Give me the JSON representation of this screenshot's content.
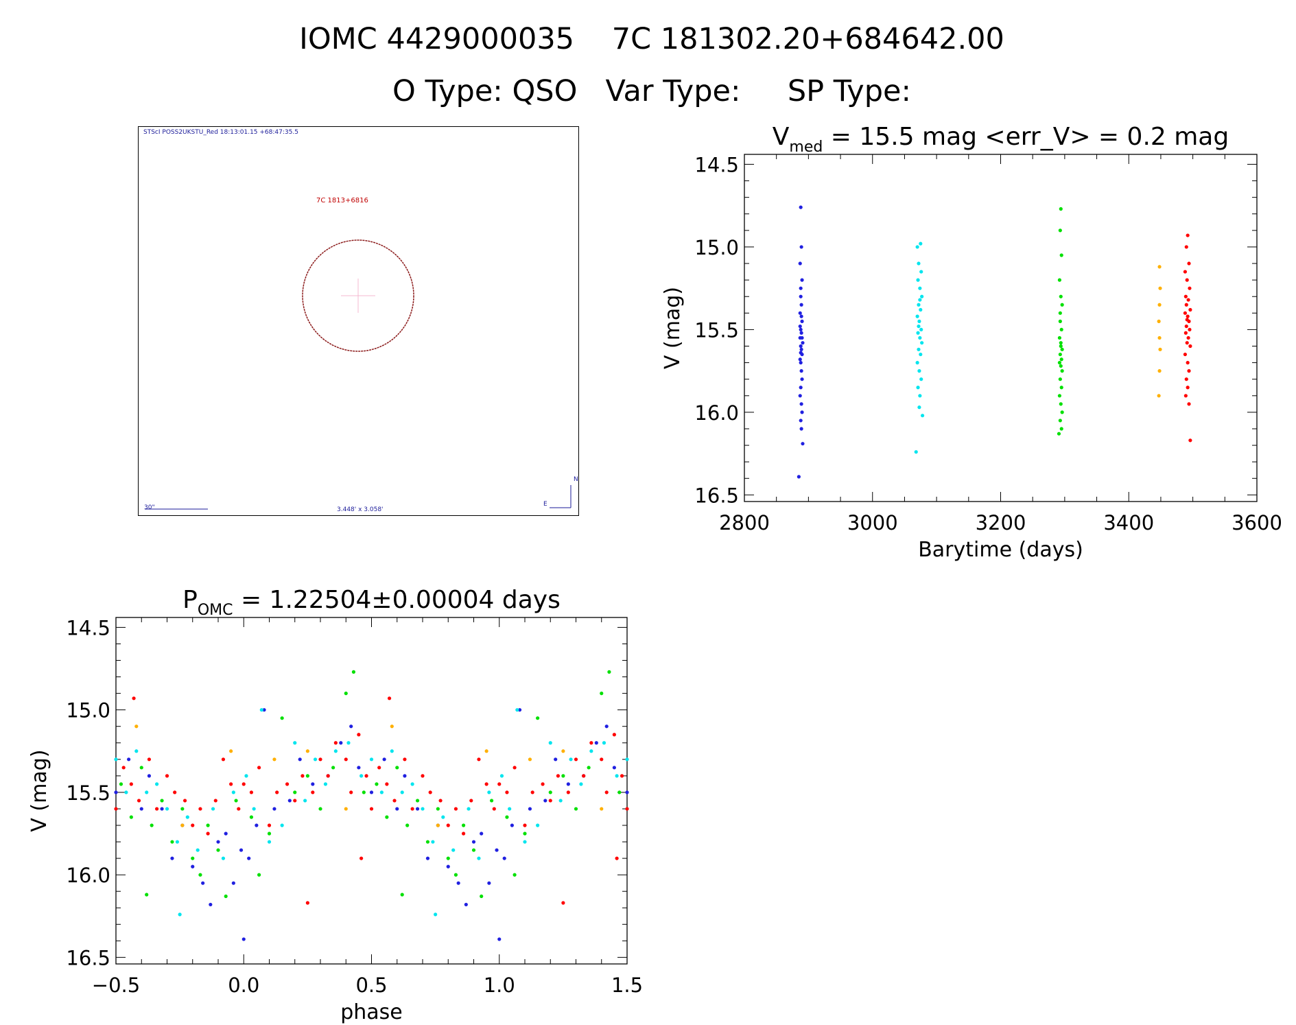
{
  "header": {
    "line1": "IOMC 4429000035    7C 181302.20+684642.00",
    "line2": "O Type: QSO   Var Type:     SP Type:"
  },
  "finder": {
    "survey_label": "STScI POSS2UKSTU_Red 18:13:01.15 +68:47:35.5",
    "object_label": "7C 1813+6816",
    "scale_label": "30\"",
    "field_size": "3.448' x 3.058'",
    "north": "N",
    "east": "E"
  },
  "chart_data": [
    {
      "type": "scatter",
      "title": "V_med = 15.5 mag <err_V> = 0.2 mag",
      "title_parts": {
        "v": "V",
        "sub": "med",
        "rest": " = 15.5 mag <err_V> = 0.2 mag"
      },
      "xlabel": "Barytime (days)",
      "ylabel": "V (mag)",
      "xlim": [
        2800,
        3600
      ],
      "ylim": [
        16.54,
        14.44
      ],
      "y_inverted": true,
      "xticks": [
        "2800",
        "3000",
        "3200",
        "3400",
        "3600"
      ],
      "yticks": [
        "14.5",
        "15.0",
        "15.5",
        "16.0",
        "16.5"
      ],
      "series": [
        {
          "color": "#2020e0",
          "points": [
            [
              2888,
              14.76
            ],
            [
              2889,
              15.0
            ],
            [
              2887,
              15.1
            ],
            [
              2890,
              15.2
            ],
            [
              2888,
              15.3
            ],
            [
              2889,
              15.35
            ],
            [
              2887,
              15.4
            ],
            [
              2890,
              15.45
            ],
            [
              2888,
              15.5
            ],
            [
              2889,
              15.52
            ],
            [
              2887,
              15.55
            ],
            [
              2891,
              15.58
            ],
            [
              2888,
              15.6
            ],
            [
              2889,
              15.62
            ],
            [
              2890,
              15.65
            ],
            [
              2887,
              15.68
            ],
            [
              2888,
              15.7
            ],
            [
              2889,
              15.75
            ],
            [
              2890,
              15.8
            ],
            [
              2888,
              15.85
            ],
            [
              2887,
              15.9
            ],
            [
              2889,
              15.95
            ],
            [
              2890,
              16.0
            ],
            [
              2888,
              16.05
            ],
            [
              2889,
              16.1
            ],
            [
              2891,
              16.19
            ],
            [
              2885,
              16.39
            ],
            [
              2888,
              15.25
            ],
            [
              2890,
              15.55
            ],
            [
              2887,
              15.48
            ],
            [
              2889,
              15.42
            ],
            [
              2888,
              15.64
            ]
          ]
        },
        {
          "color": "#00e5ee",
          "points": [
            [
              3075,
              14.98
            ],
            [
              3070,
              15.0
            ],
            [
              3072,
              15.1
            ],
            [
              3076,
              15.15
            ],
            [
              3071,
              15.2
            ],
            [
              3074,
              15.25
            ],
            [
              3077,
              15.3
            ],
            [
              3072,
              15.35
            ],
            [
              3075,
              15.38
            ],
            [
              3070,
              15.42
            ],
            [
              3073,
              15.45
            ],
            [
              3076,
              15.5
            ],
            [
              3071,
              15.52
            ],
            [
              3074,
              15.55
            ],
            [
              3077,
              15.58
            ],
            [
              3072,
              15.62
            ],
            [
              3075,
              15.65
            ],
            [
              3070,
              15.7
            ],
            [
              3073,
              15.75
            ],
            [
              3076,
              15.8
            ],
            [
              3071,
              15.85
            ],
            [
              3074,
              15.9
            ],
            [
              3073,
              15.97
            ],
            [
              3078,
              16.02
            ],
            [
              3068,
              16.24
            ],
            [
              3074,
              15.32
            ],
            [
              3072,
              15.48
            ]
          ]
        },
        {
          "color": "#00e000",
          "points": [
            [
              3294,
              14.77
            ],
            [
              3293,
              14.9
            ],
            [
              3295,
              15.05
            ],
            [
              3292,
              15.2
            ],
            [
              3294,
              15.3
            ],
            [
              3296,
              15.35
            ],
            [
              3293,
              15.45
            ],
            [
              3295,
              15.5
            ],
            [
              3292,
              15.55
            ],
            [
              3294,
              15.6
            ],
            [
              3296,
              15.62
            ],
            [
              3293,
              15.65
            ],
            [
              3295,
              15.68
            ],
            [
              3292,
              15.7
            ],
            [
              3294,
              15.72
            ],
            [
              3296,
              15.75
            ],
            [
              3293,
              15.8
            ],
            [
              3295,
              15.85
            ],
            [
              3292,
              15.9
            ],
            [
              3294,
              15.95
            ],
            [
              3296,
              16.0
            ],
            [
              3293,
              16.05
            ],
            [
              3291,
              16.13
            ],
            [
              3295,
              16.1
            ],
            [
              3294,
              15.58
            ],
            [
              3293,
              15.4
            ]
          ]
        },
        {
          "color": "#ffb000",
          "points": [
            [
              3448,
              15.12
            ],
            [
              3449,
              15.25
            ],
            [
              3448,
              15.35
            ],
            [
              3447,
              15.45
            ],
            [
              3448,
              15.55
            ],
            [
              3449,
              15.62
            ],
            [
              3448,
              15.75
            ],
            [
              3447,
              15.9
            ]
          ]
        },
        {
          "color": "#ff0000",
          "points": [
            [
              3492,
              14.93
            ],
            [
              3490,
              15.0
            ],
            [
              3494,
              15.1
            ],
            [
              3488,
              15.15
            ],
            [
              3491,
              15.2
            ],
            [
              3495,
              15.25
            ],
            [
              3489,
              15.3
            ],
            [
              3493,
              15.32
            ],
            [
              3490,
              15.35
            ],
            [
              3496,
              15.38
            ],
            [
              3488,
              15.4
            ],
            [
              3492,
              15.42
            ],
            [
              3494,
              15.45
            ],
            [
              3490,
              15.48
            ],
            [
              3495,
              15.5
            ],
            [
              3489,
              15.52
            ],
            [
              3493,
              15.55
            ],
            [
              3491,
              15.58
            ],
            [
              3496,
              15.6
            ],
            [
              3488,
              15.65
            ],
            [
              3492,
              15.7
            ],
            [
              3494,
              15.75
            ],
            [
              3490,
              15.8
            ],
            [
              3492,
              15.85
            ],
            [
              3489,
              15.9
            ],
            [
              3494,
              15.95
            ],
            [
              3496,
              16.17
            ],
            [
              3491,
              15.44
            ]
          ]
        }
      ]
    },
    {
      "type": "scatter",
      "title": "P_OMC = 1.22504±0.00004 days",
      "title_parts": {
        "p": "P",
        "sub": "OMC",
        "rest": " = 1.22504±0.00004 days"
      },
      "xlabel": "phase",
      "ylabel": "V (mag)",
      "xlim": [
        -0.5,
        1.5
      ],
      "ylim": [
        16.54,
        14.44
      ],
      "y_inverted": true,
      "xticks": [
        "−0.5",
        "0.0",
        "0.5",
        "1.0",
        "1.5"
      ],
      "yticks": [
        "14.5",
        "15.0",
        "15.5",
        "16.0",
        "16.5"
      ],
      "phase_repeated": true,
      "series": [
        {
          "color": "#2020e0",
          "points": [
            [
              0.02,
              15.9
            ],
            [
              0.05,
              15.7
            ],
            [
              0.08,
              15.0
            ],
            [
              0.12,
              15.6
            ],
            [
              0.18,
              15.55
            ],
            [
              0.22,
              15.3
            ],
            [
              0.27,
              15.45
            ],
            [
              0.33,
              15.4
            ],
            [
              0.38,
              15.2
            ],
            [
              0.42,
              15.1
            ],
            [
              0.45,
              15.35
            ],
            [
              0.5,
              15.5
            ],
            [
              0.55,
              15.3
            ],
            [
              0.6,
              15.6
            ],
            [
              0.63,
              15.4
            ],
            [
              0.68,
              15.6
            ],
            [
              0.72,
              15.9
            ],
            [
              0.76,
              15.7
            ],
            [
              0.8,
              15.95
            ],
            [
              0.84,
              16.05
            ],
            [
              0.87,
              16.18
            ],
            [
              0.9,
              15.8
            ],
            [
              0.93,
              15.75
            ],
            [
              0.96,
              16.05
            ],
            [
              0.0,
              16.39
            ],
            [
              0.99,
              15.85
            ]
          ]
        },
        {
          "color": "#00e5ee",
          "points": [
            [
              0.01,
              15.4
            ],
            [
              0.04,
              15.6
            ],
            [
              0.07,
              15.0
            ],
            [
              0.1,
              15.8
            ],
            [
              0.15,
              15.7
            ],
            [
              0.2,
              15.2
            ],
            [
              0.24,
              15.55
            ],
            [
              0.28,
              15.3
            ],
            [
              0.32,
              15.45
            ],
            [
              0.36,
              15.25
            ],
            [
              0.41,
              15.2
            ],
            [
              0.46,
              15.4
            ],
            [
              0.5,
              15.3
            ],
            [
              0.54,
              15.5
            ],
            [
              0.58,
              15.25
            ],
            [
              0.62,
              15.5
            ],
            [
              0.66,
              15.45
            ],
            [
              0.7,
              15.6
            ],
            [
              0.74,
              15.8
            ],
            [
              0.75,
              16.24
            ],
            [
              0.78,
              15.65
            ],
            [
              0.82,
              15.85
            ],
            [
              0.88,
              15.6
            ],
            [
              0.92,
              15.9
            ],
            [
              0.96,
              15.5
            ]
          ]
        },
        {
          "color": "#00e000",
          "points": [
            [
              0.03,
              15.65
            ],
            [
              0.06,
              16.0
            ],
            [
              0.1,
              15.75
            ],
            [
              0.15,
              15.05
            ],
            [
              0.2,
              15.5
            ],
            [
              0.25,
              15.4
            ],
            [
              0.3,
              15.6
            ],
            [
              0.35,
              15.35
            ],
            [
              0.4,
              14.9
            ],
            [
              0.43,
              14.77
            ],
            [
              0.47,
              15.5
            ],
            [
              0.52,
              15.45
            ],
            [
              0.56,
              15.65
            ],
            [
              0.6,
              15.35
            ],
            [
              0.64,
              15.7
            ],
            [
              0.68,
              15.55
            ],
            [
              0.72,
              15.8
            ],
            [
              0.76,
              15.6
            ],
            [
              0.8,
              15.9
            ],
            [
              0.83,
              16.0
            ],
            [
              0.86,
              15.7
            ],
            [
              0.9,
              15.85
            ],
            [
              0.93,
              16.13
            ],
            [
              0.97,
              15.55
            ],
            [
              0.62,
              16.12
            ]
          ]
        },
        {
          "color": "#ffb000",
          "points": [
            [
              0.12,
              15.3
            ],
            [
              0.25,
              15.25
            ],
            [
              0.4,
              15.6
            ],
            [
              0.58,
              15.1
            ],
            [
              0.76,
              15.7
            ],
            [
              0.95,
              15.25
            ]
          ]
        },
        {
          "color": "#ff0000",
          "points": [
            [
              0.0,
              15.45
            ],
            [
              0.03,
              15.5
            ],
            [
              0.06,
              15.35
            ],
            [
              0.1,
              15.7
            ],
            [
              0.13,
              15.5
            ],
            [
              0.17,
              15.45
            ],
            [
              0.2,
              15.55
            ],
            [
              0.23,
              15.4
            ],
            [
              0.25,
              16.17
            ],
            [
              0.27,
              15.5
            ],
            [
              0.3,
              15.3
            ],
            [
              0.33,
              15.4
            ],
            [
              0.36,
              15.2
            ],
            [
              0.4,
              15.3
            ],
            [
              0.42,
              15.5
            ],
            [
              0.45,
              15.15
            ],
            [
              0.48,
              15.4
            ],
            [
              0.5,
              15.6
            ],
            [
              0.53,
              15.35
            ],
            [
              0.56,
              15.45
            ],
            [
              0.59,
              15.55
            ],
            [
              0.63,
              15.3
            ],
            [
              0.66,
              15.6
            ],
            [
              0.7,
              15.4
            ],
            [
              0.73,
              15.5
            ],
            [
              0.77,
              15.55
            ],
            [
              0.8,
              15.7
            ],
            [
              0.83,
              15.6
            ],
            [
              0.86,
              15.75
            ],
            [
              0.89,
              15.55
            ],
            [
              0.92,
              15.3
            ],
            [
              0.95,
              15.45
            ],
            [
              0.98,
              15.6
            ],
            [
              0.57,
              14.93
            ],
            [
              0.46,
              15.9
            ]
          ]
        }
      ]
    }
  ]
}
